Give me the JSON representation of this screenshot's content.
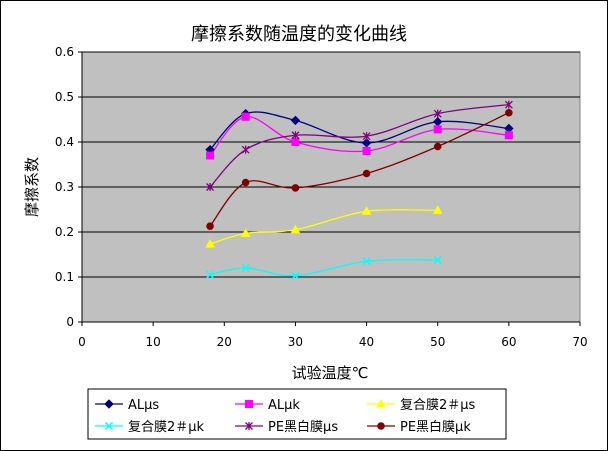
{
  "chart_data": {
    "type": "line",
    "title": "摩擦系数随温度的变化曲线",
    "xlabel": "试验温度℃",
    "ylabel": "摩擦系数",
    "xlim": [
      0,
      70
    ],
    "ylim": [
      0,
      0.6
    ],
    "xticks": [
      0,
      10,
      20,
      30,
      40,
      50,
      60,
      70
    ],
    "yticks": [
      0,
      0.1,
      0.2,
      0.3,
      0.4,
      0.5,
      0.6
    ],
    "xtick_labels": [
      "0",
      "10",
      "20",
      "30",
      "40",
      "50",
      "60",
      "70"
    ],
    "ytick_labels": [
      "0",
      "0.1",
      "0.2",
      "0.3",
      "0.4",
      "0.5",
      "0.6"
    ],
    "grid": "horizontal",
    "plot_background": "#c0c0c0",
    "legend_position": "bottom",
    "series": [
      {
        "name": "ALμs",
        "color": "#000080",
        "marker": "diamond",
        "x": [
          18,
          23,
          30,
          40,
          50,
          60
        ],
        "y": [
          0.383,
          0.463,
          0.448,
          0.398,
          0.445,
          0.43
        ]
      },
      {
        "name": "ALμk",
        "color": "#ff00ff",
        "marker": "square",
        "x": [
          18,
          23,
          30,
          40,
          50,
          60
        ],
        "y": [
          0.37,
          0.456,
          0.4,
          0.38,
          0.428,
          0.415
        ]
      },
      {
        "name": "复合膜2＃μs",
        "color": "#ffff00",
        "marker": "triangle",
        "x": [
          18,
          23,
          30,
          40,
          50
        ],
        "y": [
          0.173,
          0.197,
          0.205,
          0.246,
          0.248
        ]
      },
      {
        "name": "复合膜2＃μk",
        "color": "#00ffff",
        "marker": "x",
        "x": [
          18,
          23,
          30,
          40,
          50
        ],
        "y": [
          0.105,
          0.12,
          0.103,
          0.135,
          0.138
        ]
      },
      {
        "name": "PE黑白膜μs",
        "color": "#800080",
        "marker": "star",
        "x": [
          18,
          23,
          30,
          40,
          50,
          60
        ],
        "y": [
          0.3,
          0.383,
          0.415,
          0.413,
          0.463,
          0.483
        ]
      },
      {
        "name": "PE黑白膜μk",
        "color": "#800000",
        "marker": "circle",
        "x": [
          18,
          23,
          30,
          40,
          50,
          60
        ],
        "y": [
          0.213,
          0.31,
          0.298,
          0.33,
          0.39,
          0.465
        ]
      }
    ]
  }
}
